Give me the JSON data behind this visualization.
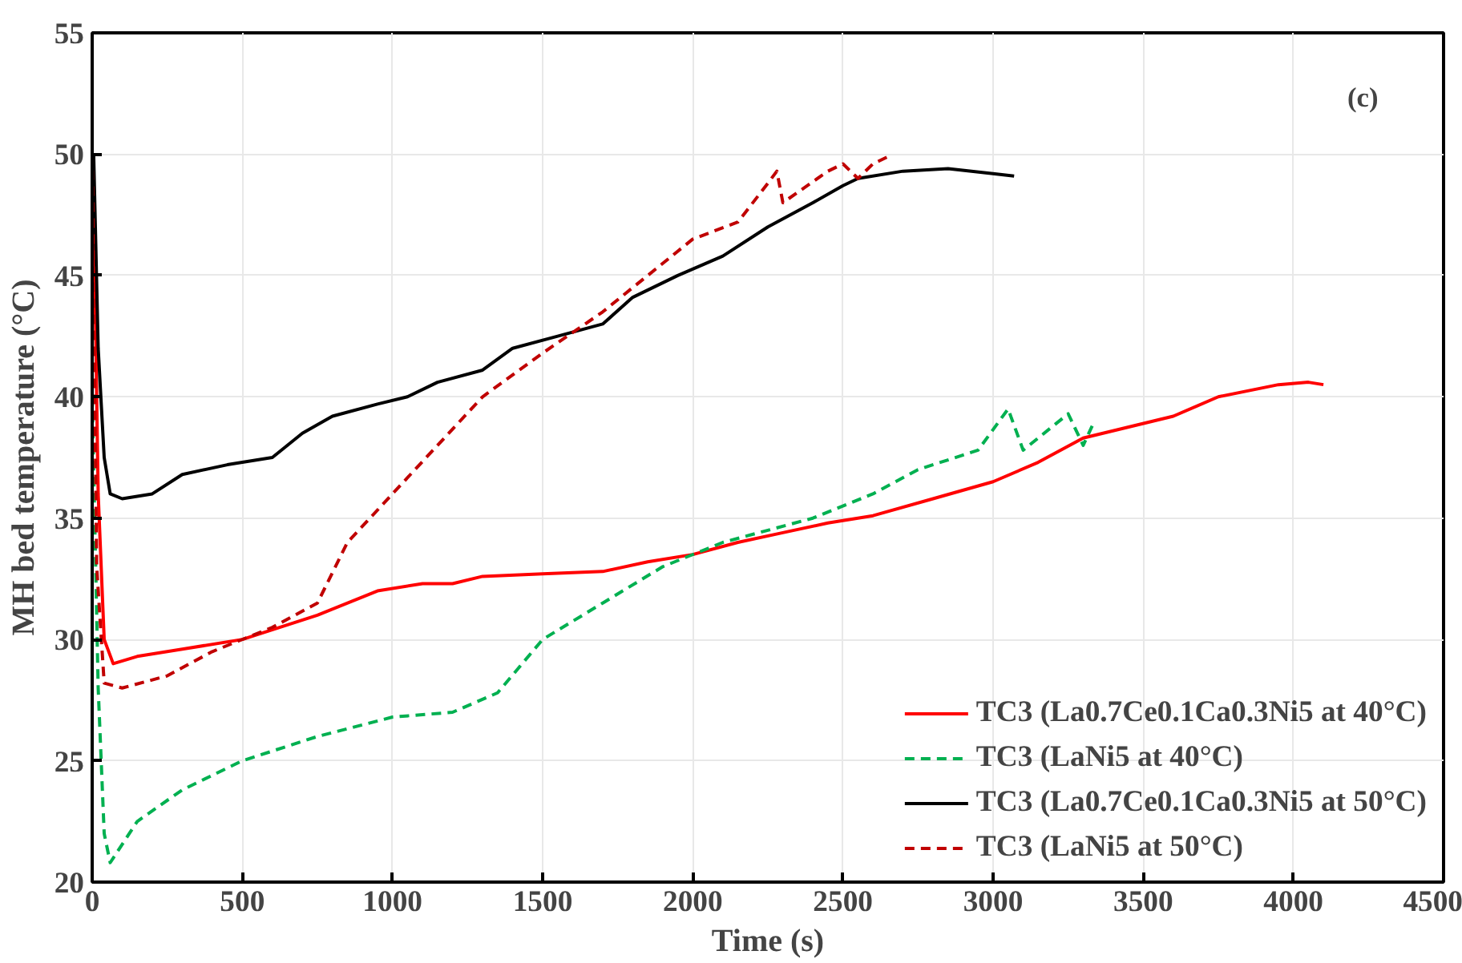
{
  "chart_data": {
    "type": "line",
    "xlabel": "Time (s)",
    "ylabel": "MH bed temperature (°C)",
    "annotations": [
      "(c)"
    ],
    "xlim": [
      0,
      4500
    ],
    "xticks": [
      0,
      500,
      1000,
      1500,
      2000,
      2500,
      3000,
      3500,
      4000,
      4500
    ],
    "ylim": [
      20,
      55
    ],
    "yticks": [
      20,
      25,
      30,
      35,
      40,
      45,
      50,
      55
    ],
    "grid": true,
    "legend": "bottom right",
    "series": [
      {
        "name": "TC3 (La0.7Ce0.1Ca0.3Ni5 at 40°C)",
        "color": "#ff0000",
        "line_style": "solid",
        "x": [
          5,
          20,
          40,
          70,
          150,
          300,
          500,
          750,
          950,
          1100,
          1200,
          1300,
          1500,
          1700,
          1850,
          2000,
          2150,
          2300,
          2450,
          2600,
          2800,
          3000,
          3150,
          3300,
          3600,
          3750,
          3950,
          4050,
          4100
        ],
        "values": [
          48,
          36,
          30,
          29,
          29.3,
          29.6,
          30,
          31,
          32,
          32.3,
          32.3,
          32.6,
          32.7,
          32.8,
          33.2,
          33.5,
          34,
          34.4,
          34.8,
          35.1,
          35.8,
          36.5,
          37.3,
          38.3,
          39.2,
          40,
          40.5,
          40.6,
          40.5
        ]
      },
      {
        "name": "TC3 (LaNi5 at 40°C)",
        "color": "#00b050",
        "line_style": "dashed",
        "x": [
          0,
          20,
          40,
          60,
          150,
          300,
          500,
          750,
          1000,
          1200,
          1350,
          1500,
          1700,
          1900,
          2100,
          2400,
          2600,
          2750,
          2950,
          3050,
          3100,
          3250,
          3300,
          3330
        ],
        "values": [
          40,
          28,
          22,
          20.8,
          22.5,
          23.8,
          25,
          26,
          26.8,
          27,
          27.8,
          30,
          31.5,
          33,
          34,
          35,
          36,
          37,
          37.8,
          39.5,
          37.8,
          39.3,
          38,
          38.8
        ]
      },
      {
        "name": "TC3 (La0.7Ce0.1Ca0.3Ni5 at 50°C)",
        "color": "#000000",
        "line_style": "solid",
        "x": [
          5,
          20,
          40,
          60,
          100,
          200,
          300,
          450,
          600,
          700,
          800,
          950,
          1050,
          1150,
          1300,
          1400,
          1550,
          1700,
          1800,
          1950,
          2100,
          2250,
          2400,
          2500,
          2550,
          2700,
          2850,
          3000,
          3070
        ],
        "values": [
          50,
          42,
          37.5,
          36,
          35.8,
          36,
          36.8,
          37.2,
          37.5,
          38.5,
          39.2,
          39.7,
          40,
          40.6,
          41.1,
          42,
          42.5,
          43,
          44.1,
          45,
          45.8,
          47,
          48,
          48.7,
          49,
          49.3,
          49.4,
          49.2,
          49.1
        ]
      },
      {
        "name": "TC3 (LaNi5 at 50°C)",
        "color": "#c00000",
        "line_style": "dashed",
        "x": [
          0,
          15,
          40,
          100,
          250,
          400,
          600,
          750,
          850,
          1000,
          1150,
          1300,
          1500,
          1700,
          1850,
          2000,
          2150,
          2250,
          2280,
          2300,
          2450,
          2500,
          2550,
          2600,
          2650
        ],
        "values": [
          50,
          33,
          28.2,
          28,
          28.5,
          29.5,
          30.5,
          31.5,
          34,
          36,
          38,
          40,
          41.8,
          43.5,
          45,
          46.5,
          47.2,
          48.8,
          49.3,
          48,
          49.3,
          49.6,
          49,
          49.6,
          49.9
        ]
      }
    ]
  }
}
